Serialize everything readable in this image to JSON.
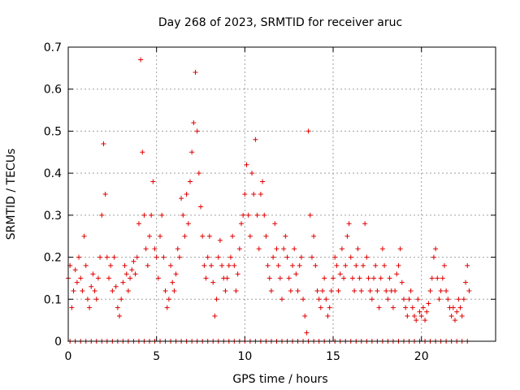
{
  "chart_data": {
    "type": "scatter",
    "title": "Day 268 of 2023, SRMTID for receiver aruc",
    "xlabel": "GPS time / hours",
    "ylabel": "SRMTID / TECUs",
    "xlim": [
      0,
      24.2
    ],
    "ylim": [
      0,
      0.7
    ],
    "xticks": [
      0,
      5,
      10,
      15,
      20
    ],
    "xtick_labels": [
      "0",
      "5",
      "10",
      "15",
      "20"
    ],
    "yticks": [
      0,
      0.1,
      0.2,
      0.3,
      0.4,
      0.5,
      0.6,
      0.7
    ],
    "ytick_labels": [
      "0",
      "0.1",
      "0.2",
      "0.3",
      "0.4",
      "0.5",
      "0.6",
      "0.7"
    ],
    "grid": true,
    "marker": "+",
    "marker_color": "#e00000",
    "series": [
      {
        "name": "aruc",
        "points": [
          [
            0.0,
            0.15
          ],
          [
            0.1,
            0.18
          ],
          [
            0.2,
            0.08
          ],
          [
            0.3,
            0.12
          ],
          [
            0.4,
            0.17
          ],
          [
            0.5,
            0.14
          ],
          [
            0.6,
            0.2
          ],
          [
            0.7,
            0.15
          ],
          [
            0.8,
            0.12
          ],
          [
            0.9,
            0.25
          ],
          [
            1.0,
            0.18
          ],
          [
            1.1,
            0.1
          ],
          [
            1.2,
            0.08
          ],
          [
            1.3,
            0.13
          ],
          [
            1.4,
            0.16
          ],
          [
            1.5,
            0.12
          ],
          [
            1.6,
            0.1
          ],
          [
            1.7,
            0.15
          ],
          [
            1.8,
            0.2
          ],
          [
            1.9,
            0.3
          ],
          [
            2.0,
            0.47
          ],
          [
            2.1,
            0.35
          ],
          [
            2.2,
            0.2
          ],
          [
            2.3,
            0.15
          ],
          [
            2.4,
            0.18
          ],
          [
            2.5,
            0.12
          ],
          [
            2.6,
            0.2
          ],
          [
            2.7,
            0.13
          ],
          [
            2.8,
            0.08
          ],
          [
            2.9,
            0.06
          ],
          [
            3.0,
            0.1
          ],
          [
            3.1,
            0.14
          ],
          [
            3.2,
            0.18
          ],
          [
            3.3,
            0.16
          ],
          [
            3.4,
            0.12
          ],
          [
            3.5,
            0.15
          ],
          [
            3.6,
            0.17
          ],
          [
            3.7,
            0.19
          ],
          [
            3.8,
            0.16
          ],
          [
            3.9,
            0.2
          ],
          [
            4.0,
            0.28
          ],
          [
            4.1,
            0.67
          ],
          [
            4.2,
            0.45
          ],
          [
            4.3,
            0.3
          ],
          [
            4.4,
            0.22
          ],
          [
            4.5,
            0.18
          ],
          [
            4.6,
            0.25
          ],
          [
            4.7,
            0.3
          ],
          [
            4.8,
            0.38
          ],
          [
            4.9,
            0.22
          ],
          [
            5.0,
            0.2
          ],
          [
            5.1,
            0.15
          ],
          [
            5.2,
            0.25
          ],
          [
            5.3,
            0.3
          ],
          [
            5.4,
            0.2
          ],
          [
            5.5,
            0.12
          ],
          [
            5.6,
            0.08
          ],
          [
            5.7,
            0.1
          ],
          [
            5.8,
            0.18
          ],
          [
            5.9,
            0.14
          ],
          [
            6.0,
            0.12
          ],
          [
            6.1,
            0.16
          ],
          [
            6.2,
            0.22
          ],
          [
            6.3,
            0.2
          ],
          [
            6.4,
            0.34
          ],
          [
            6.5,
            0.3
          ],
          [
            6.6,
            0.25
          ],
          [
            6.7,
            0.35
          ],
          [
            6.8,
            0.28
          ],
          [
            6.9,
            0.38
          ],
          [
            7.0,
            0.45
          ],
          [
            7.1,
            0.52
          ],
          [
            7.2,
            0.64
          ],
          [
            7.3,
            0.5
          ],
          [
            7.4,
            0.4
          ],
          [
            7.5,
            0.32
          ],
          [
            7.6,
            0.25
          ],
          [
            7.7,
            0.18
          ],
          [
            7.8,
            0.15
          ],
          [
            7.9,
            0.2
          ],
          [
            8.0,
            0.25
          ],
          [
            8.1,
            0.18
          ],
          [
            8.2,
            0.14
          ],
          [
            8.3,
            0.06
          ],
          [
            8.4,
            0.1
          ],
          [
            8.5,
            0.2
          ],
          [
            8.6,
            0.24
          ],
          [
            8.7,
            0.18
          ],
          [
            8.8,
            0.15
          ],
          [
            8.9,
            0.12
          ],
          [
            9.0,
            0.15
          ],
          [
            9.1,
            0.18
          ],
          [
            9.2,
            0.2
          ],
          [
            9.3,
            0.25
          ],
          [
            9.4,
            0.18
          ],
          [
            9.5,
            0.12
          ],
          [
            9.6,
            0.16
          ],
          [
            9.7,
            0.22
          ],
          [
            9.8,
            0.28
          ],
          [
            9.9,
            0.3
          ],
          [
            10.0,
            0.35
          ],
          [
            10.1,
            0.42
          ],
          [
            10.2,
            0.3
          ],
          [
            10.3,
            0.25
          ],
          [
            10.4,
            0.4
          ],
          [
            10.5,
            0.35
          ],
          [
            10.6,
            0.48
          ],
          [
            10.7,
            0.3
          ],
          [
            10.8,
            0.22
          ],
          [
            10.9,
            0.35
          ],
          [
            11.0,
            0.38
          ],
          [
            11.1,
            0.3
          ],
          [
            11.2,
            0.25
          ],
          [
            11.3,
            0.18
          ],
          [
            11.4,
            0.15
          ],
          [
            11.5,
            0.12
          ],
          [
            11.6,
            0.2
          ],
          [
            11.7,
            0.28
          ],
          [
            11.8,
            0.22
          ],
          [
            11.9,
            0.18
          ],
          [
            12.0,
            0.15
          ],
          [
            12.1,
            0.1
          ],
          [
            12.2,
            0.22
          ],
          [
            12.3,
            0.25
          ],
          [
            12.4,
            0.2
          ],
          [
            12.5,
            0.15
          ],
          [
            12.6,
            0.12
          ],
          [
            12.7,
            0.18
          ],
          [
            12.8,
            0.22
          ],
          [
            12.9,
            0.16
          ],
          [
            13.0,
            0.12
          ],
          [
            13.1,
            0.18
          ],
          [
            13.2,
            0.2
          ],
          [
            13.3,
            0.1
          ],
          [
            13.4,
            0.06
          ],
          [
            13.5,
            0.02
          ],
          [
            13.6,
            0.5
          ],
          [
            13.7,
            0.3
          ],
          [
            13.8,
            0.2
          ],
          [
            13.9,
            0.25
          ],
          [
            14.0,
            0.18
          ],
          [
            14.1,
            0.12
          ],
          [
            14.2,
            0.1
          ],
          [
            14.3,
            0.08
          ],
          [
            14.4,
            0.12
          ],
          [
            14.5,
            0.15
          ],
          [
            14.6,
            0.1
          ],
          [
            14.7,
            0.06
          ],
          [
            14.8,
            0.08
          ],
          [
            14.9,
            0.12
          ],
          [
            15.0,
            0.15
          ],
          [
            15.1,
            0.2
          ],
          [
            15.2,
            0.18
          ],
          [
            15.3,
            0.12
          ],
          [
            15.4,
            0.16
          ],
          [
            15.5,
            0.22
          ],
          [
            15.6,
            0.15
          ],
          [
            15.7,
            0.18
          ],
          [
            15.8,
            0.25
          ],
          [
            15.9,
            0.28
          ],
          [
            16.0,
            0.2
          ],
          [
            16.1,
            0.15
          ],
          [
            16.2,
            0.12
          ],
          [
            16.3,
            0.18
          ],
          [
            16.4,
            0.22
          ],
          [
            16.5,
            0.15
          ],
          [
            16.6,
            0.12
          ],
          [
            16.7,
            0.18
          ],
          [
            16.8,
            0.28
          ],
          [
            16.9,
            0.2
          ],
          [
            17.0,
            0.15
          ],
          [
            17.1,
            0.12
          ],
          [
            17.2,
            0.1
          ],
          [
            17.3,
            0.15
          ],
          [
            17.4,
            0.18
          ],
          [
            17.5,
            0.12
          ],
          [
            17.6,
            0.08
          ],
          [
            17.7,
            0.15
          ],
          [
            17.8,
            0.22
          ],
          [
            17.9,
            0.18
          ],
          [
            18.0,
            0.12
          ],
          [
            18.1,
            0.1
          ],
          [
            18.2,
            0.15
          ],
          [
            18.3,
            0.12
          ],
          [
            18.4,
            0.08
          ],
          [
            18.5,
            0.12
          ],
          [
            18.6,
            0.16
          ],
          [
            18.7,
            0.18
          ],
          [
            18.8,
            0.22
          ],
          [
            18.9,
            0.14
          ],
          [
            19.0,
            0.1
          ],
          [
            19.1,
            0.08
          ],
          [
            19.2,
            0.06
          ],
          [
            19.3,
            0.1
          ],
          [
            19.4,
            0.12
          ],
          [
            19.5,
            0.08
          ],
          [
            19.6,
            0.06
          ],
          [
            19.7,
            0.05
          ],
          [
            19.8,
            0.1
          ],
          [
            19.9,
            0.07
          ],
          [
            20.0,
            0.06
          ],
          [
            20.1,
            0.08
          ],
          [
            20.2,
            0.05
          ],
          [
            20.3,
            0.07
          ],
          [
            20.4,
            0.09
          ],
          [
            20.5,
            0.12
          ],
          [
            20.6,
            0.15
          ],
          [
            20.7,
            0.2
          ],
          [
            20.8,
            0.22
          ],
          [
            20.9,
            0.15
          ],
          [
            21.0,
            0.1
          ],
          [
            21.1,
            0.12
          ],
          [
            21.2,
            0.15
          ],
          [
            21.3,
            0.18
          ],
          [
            21.4,
            0.12
          ],
          [
            21.5,
            0.1
          ],
          [
            21.6,
            0.08
          ],
          [
            21.7,
            0.06
          ],
          [
            21.8,
            0.08
          ],
          [
            21.9,
            0.05
          ],
          [
            22.0,
            0.07
          ],
          [
            22.1,
            0.1
          ],
          [
            22.2,
            0.08
          ],
          [
            22.3,
            0.06
          ],
          [
            22.4,
            0.1
          ],
          [
            22.5,
            0.14
          ],
          [
            22.6,
            0.18
          ],
          [
            22.7,
            0.12
          ],
          [
            0.1,
            0.0
          ],
          [
            0.4,
            0.0
          ],
          [
            0.7,
            0.0
          ],
          [
            1.0,
            0.0
          ],
          [
            1.3,
            0.0
          ],
          [
            1.6,
            0.0
          ],
          [
            1.9,
            0.0
          ],
          [
            2.2,
            0.0
          ],
          [
            2.5,
            0.0
          ],
          [
            2.8,
            0.0
          ],
          [
            3.1,
            0.0
          ],
          [
            3.4,
            0.0
          ],
          [
            3.7,
            0.0
          ],
          [
            4.0,
            0.0
          ],
          [
            4.3,
            0.0
          ],
          [
            4.6,
            0.0
          ],
          [
            4.9,
            0.0
          ],
          [
            5.2,
            0.0
          ],
          [
            5.5,
            0.0
          ],
          [
            5.8,
            0.0
          ],
          [
            6.1,
            0.0
          ],
          [
            6.4,
            0.0
          ],
          [
            6.7,
            0.0
          ],
          [
            7.0,
            0.0
          ],
          [
            7.3,
            0.0
          ],
          [
            7.6,
            0.0
          ],
          [
            7.9,
            0.0
          ],
          [
            8.2,
            0.0
          ],
          [
            8.5,
            0.0
          ],
          [
            8.8,
            0.0
          ],
          [
            9.1,
            0.0
          ],
          [
            9.4,
            0.0
          ],
          [
            9.7,
            0.0
          ],
          [
            10.0,
            0.0
          ],
          [
            10.3,
            0.0
          ],
          [
            10.6,
            0.0
          ],
          [
            10.9,
            0.0
          ],
          [
            11.2,
            0.0
          ],
          [
            11.5,
            0.0
          ],
          [
            11.8,
            0.0
          ],
          [
            12.1,
            0.0
          ],
          [
            12.4,
            0.0
          ],
          [
            12.7,
            0.0
          ],
          [
            13.0,
            0.0
          ],
          [
            13.3,
            0.0
          ],
          [
            13.6,
            0.0
          ],
          [
            13.9,
            0.0
          ],
          [
            14.2,
            0.0
          ],
          [
            14.5,
            0.0
          ],
          [
            14.8,
            0.0
          ],
          [
            15.1,
            0.0
          ],
          [
            15.4,
            0.0
          ],
          [
            15.7,
            0.0
          ],
          [
            16.0,
            0.0
          ],
          [
            16.3,
            0.0
          ],
          [
            16.6,
            0.0
          ],
          [
            16.9,
            0.0
          ],
          [
            17.2,
            0.0
          ],
          [
            17.5,
            0.0
          ],
          [
            17.8,
            0.0
          ],
          [
            18.1,
            0.0
          ],
          [
            18.4,
            0.0
          ],
          [
            18.7,
            0.0
          ],
          [
            19.0,
            0.0
          ],
          [
            19.3,
            0.0
          ],
          [
            19.6,
            0.0
          ],
          [
            19.9,
            0.0
          ],
          [
            20.2,
            0.0
          ],
          [
            20.5,
            0.0
          ],
          [
            20.8,
            0.0
          ],
          [
            21.1,
            0.0
          ],
          [
            21.4,
            0.0
          ],
          [
            21.7,
            0.0
          ],
          [
            22.0,
            0.0
          ],
          [
            22.3,
            0.0
          ],
          [
            22.6,
            0.0
          ]
        ]
      }
    ]
  }
}
